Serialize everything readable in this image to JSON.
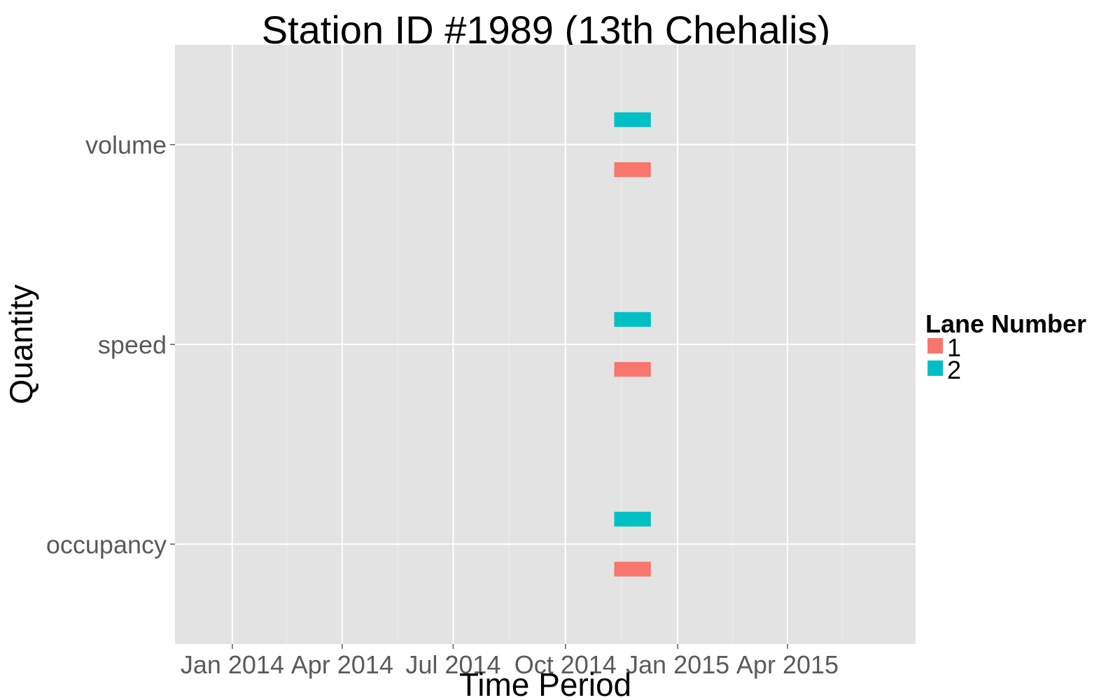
{
  "chart_data": {
    "type": "gantt",
    "title": "Station ID #1989 (13th Chehalis)",
    "xlabel": "Time Period",
    "ylabel": "Quantity",
    "x_ticks": [
      "Jan 2014",
      "Apr 2014",
      "Jul 2014",
      "Oct 2014",
      "Jan 2015",
      "Apr 2015"
    ],
    "x_range": [
      "2013-11-15",
      "2015-07-15"
    ],
    "categories": [
      "occupancy",
      "speed",
      "volume"
    ],
    "legend": {
      "title": "Lane Number",
      "position": "right",
      "entries": [
        {
          "label": "1",
          "color": "#F8766D"
        },
        {
          "label": "2",
          "color": "#00BFC4"
        }
      ]
    },
    "series": [
      {
        "lane": "1",
        "color": "#F8766D",
        "segments": [
          {
            "category": "volume",
            "start": "2014-11-10",
            "end": "2014-12-10"
          },
          {
            "category": "speed",
            "start": "2014-11-10",
            "end": "2014-12-10"
          },
          {
            "category": "occupancy",
            "start": "2014-11-10",
            "end": "2014-12-10"
          }
        ]
      },
      {
        "lane": "2",
        "color": "#00BFC4",
        "segments": [
          {
            "category": "volume",
            "start": "2014-11-10",
            "end": "2014-12-10"
          },
          {
            "category": "speed",
            "start": "2014-11-10",
            "end": "2014-12-10"
          },
          {
            "category": "occupancy",
            "start": "2014-11-10",
            "end": "2014-12-10"
          }
        ]
      }
    ],
    "grid": true,
    "panel_background": "#E3E3E3"
  }
}
